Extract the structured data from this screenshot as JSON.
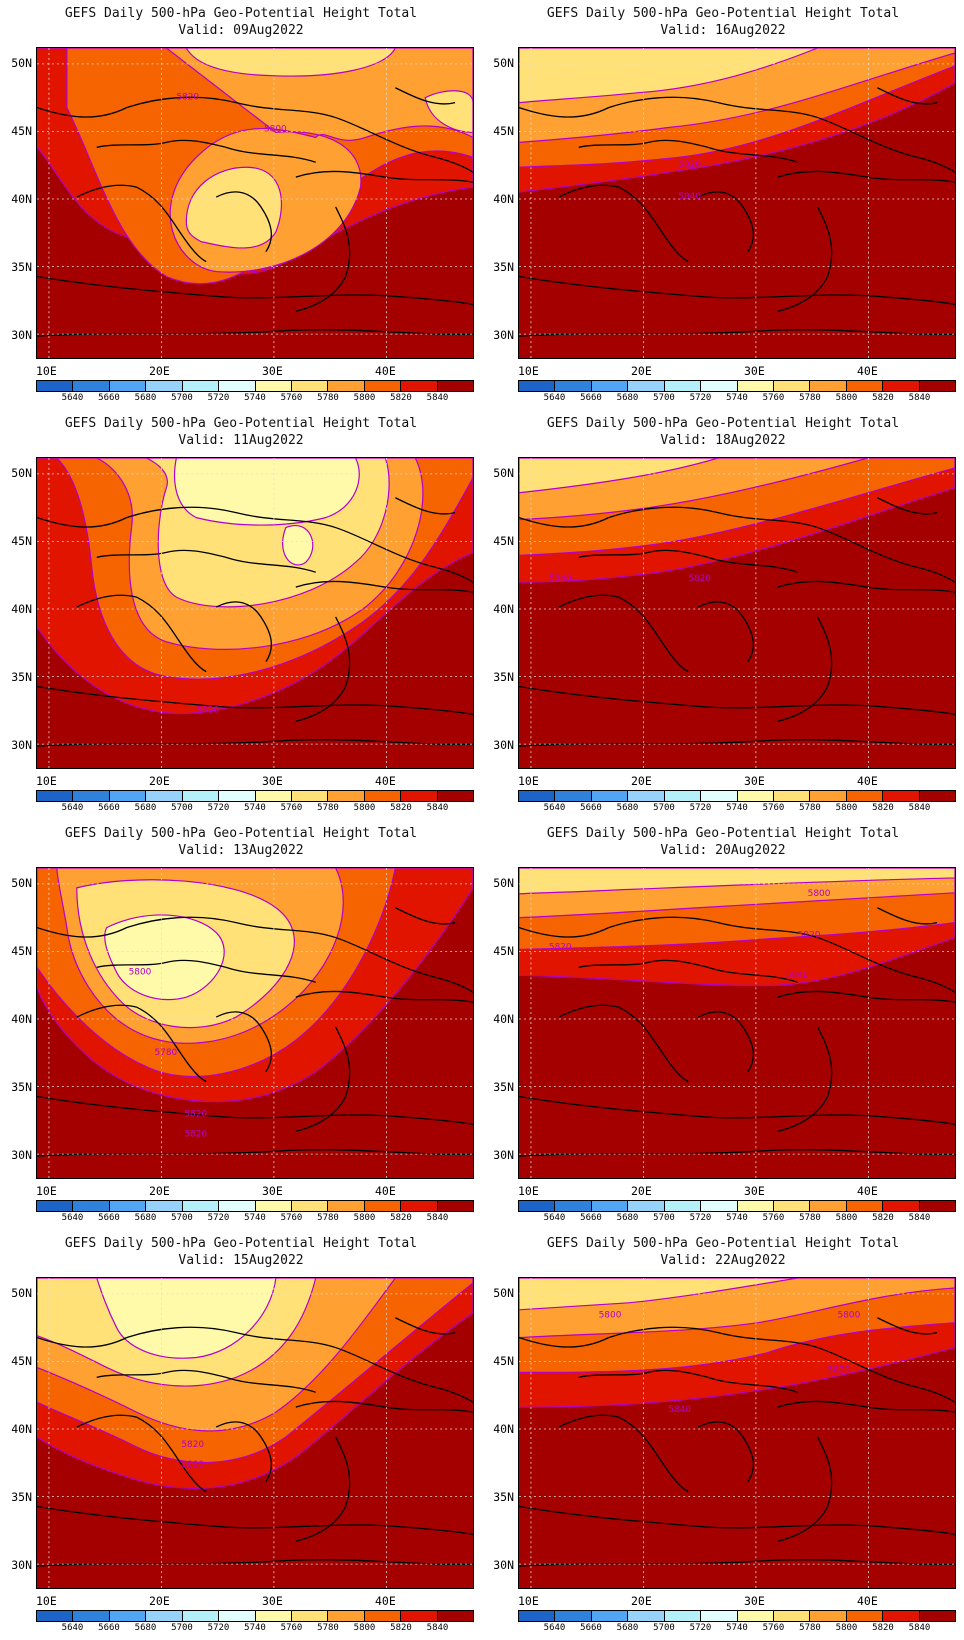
{
  "title_line": "GEFS Daily 500-hPa Geo-Potential Height Total",
  "lat_labels": [
    "50N",
    "45N",
    "40N",
    "35N",
    "30N"
  ],
  "lon_labels": [
    "10E",
    "20E",
    "30E",
    "40E"
  ],
  "colorbar": {
    "labels": [
      "5640",
      "5660",
      "5680",
      "5700",
      "5720",
      "5740",
      "5760",
      "5780",
      "5800",
      "5820",
      "5840"
    ],
    "colors": [
      "#1c64c8",
      "#2e82dc",
      "#50a5f5",
      "#96d2fa",
      "#b4f0fa",
      "#e1ffff",
      "#fffaaa",
      "#ffe178",
      "#ffa032",
      "#f56400",
      "#e11400",
      "#a50000"
    ]
  },
  "panels": [
    {
      "valid": "Valid: 09Aug2022",
      "contour_labels": [
        "5820",
        "5800"
      ]
    },
    {
      "valid": "Valid: 16Aug2022",
      "contour_labels": [
        "5820",
        "5840"
      ]
    },
    {
      "valid": "Valid: 11Aug2022",
      "contour_labels": [
        "5820"
      ]
    },
    {
      "valid": "Valid: 18Aug2022",
      "contour_labels": [
        "5840",
        "5820"
      ]
    },
    {
      "valid": "Valid: 13Aug2022",
      "contour_labels": [
        "5800",
        "5780",
        "5820",
        "5820"
      ]
    },
    {
      "valid": "Valid: 20Aug2022",
      "contour_labels": [
        "5800",
        "5820",
        "5820",
        "5840"
      ]
    },
    {
      "valid": "Valid: 15Aug2022",
      "contour_labels": [
        "5820",
        "5800"
      ]
    },
    {
      "valid": "Valid: 22Aug2022",
      "contour_labels": [
        "5800",
        "5800",
        "5820",
        "5840"
      ]
    }
  ]
}
